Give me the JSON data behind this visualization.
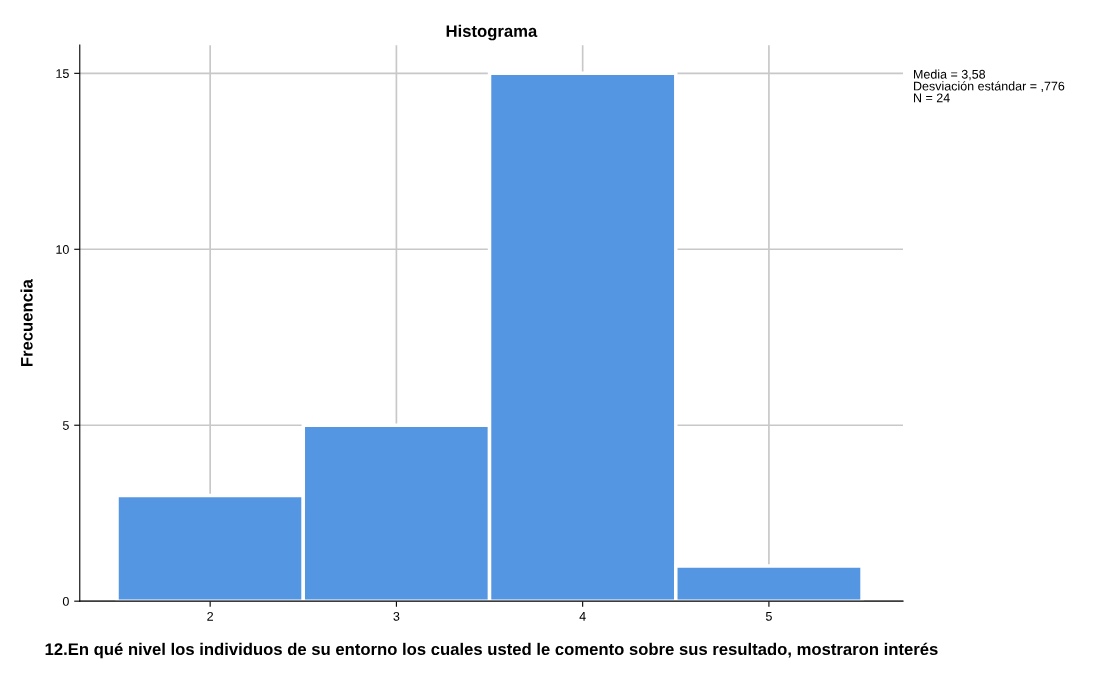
{
  "chart_data": {
    "type": "histogram",
    "title": "Histograma",
    "xlabel": "12.En qué nivel los individuos de su entorno los cuales usted le comento sobre sus resultado, mostraron interés",
    "ylabel": "Frecuencia",
    "bins": [
      1.5,
      2.5,
      3.5,
      4.5,
      5.5
    ],
    "values": [
      3,
      5,
      15,
      1
    ],
    "color": "#5596e3",
    "xlim": [
      1.3,
      5.72
    ],
    "xticks": [
      2,
      3,
      4,
      5
    ],
    "ylim": [
      0,
      15.8
    ],
    "yticks": [
      0,
      5,
      10,
      15
    ],
    "grid": true,
    "annotations": [
      "Media = 3,58",
      "Desviación estándar = ,776",
      "N = 24"
    ]
  }
}
